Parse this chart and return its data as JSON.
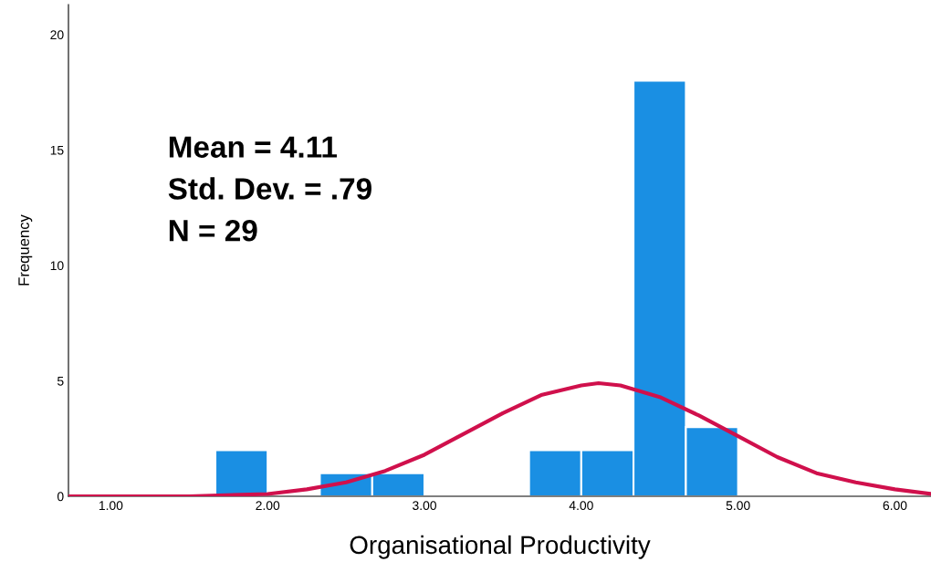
{
  "chart_data": {
    "type": "histogram",
    "xlabel": "Organisational Productivity",
    "ylabel": "Frequency",
    "annotations": [
      "Mean = 4.11",
      "Std. Dev. = .79",
      "N = 29"
    ],
    "series": [
      {
        "type": "histogram",
        "color": "#1a8fe3",
        "bins": [
          1.667,
          2.0,
          2.333,
          2.667,
          3.0,
          3.333,
          3.667,
          4.0,
          4.333,
          4.667,
          5.0
        ],
        "values": [
          2,
          0,
          1,
          1,
          0,
          0,
          2,
          2,
          18,
          3
        ]
      },
      {
        "type": "line",
        "color": "#d0104c",
        "x": [
          0.73,
          1.0,
          1.5,
          2.0,
          2.25,
          2.5,
          2.75,
          3.0,
          3.25,
          3.5,
          3.75,
          4.0,
          4.11,
          4.25,
          4.5,
          4.75,
          5.0,
          5.25,
          5.5,
          5.75,
          6.0,
          6.23
        ],
        "values": [
          0.0,
          0.0,
          0.0,
          0.1,
          0.3,
          0.6,
          1.1,
          1.8,
          2.7,
          3.6,
          4.4,
          4.8,
          4.9,
          4.8,
          4.3,
          3.5,
          2.6,
          1.7,
          1.0,
          0.6,
          0.3,
          0.1
        ]
      }
    ],
    "xlim": [
      0.73,
      6.23
    ],
    "ylim": [
      0,
      21.3
    ],
    "xticks": [
      {
        "value": 1,
        "label": "1.00"
      },
      {
        "value": 2,
        "label": "2.00"
      },
      {
        "value": 3,
        "label": "3.00"
      },
      {
        "value": 4,
        "label": "4.00"
      },
      {
        "value": 5,
        "label": "5.00"
      },
      {
        "value": 6,
        "label": "6.00"
      }
    ],
    "yticks": [
      0,
      5,
      10,
      15,
      20
    ],
    "grid": false,
    "legend": false
  }
}
